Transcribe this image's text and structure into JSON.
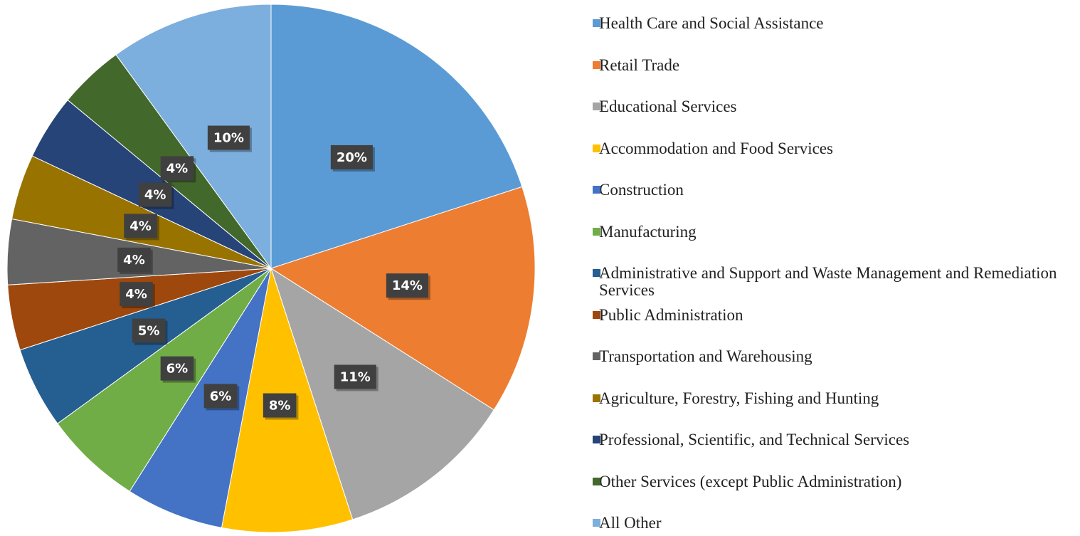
{
  "chart_data": {
    "type": "pie",
    "categories": [
      "Health Care and Social Assistance",
      "Retail Trade",
      "Educational Services",
      "Accommodation and Food Services",
      "Construction",
      "Manufacturing",
      "Administrative and Support and Waste Management and Remediation Services",
      "Public Administration",
      "Transportation and Warehousing",
      "Agriculture, Forestry, Fishing and Hunting",
      "Professional, Scientific, and Technical Services",
      "Other Services (except Public Administration)",
      "All Other"
    ],
    "values": [
      20,
      14,
      11,
      8,
      6,
      6,
      5,
      4,
      4,
      4,
      4,
      4,
      10
    ],
    "value_labels": [
      "20%",
      "14%",
      "11%",
      "8%",
      "6%",
      "6%",
      "5%",
      "4%",
      "4%",
      "4%",
      "4%",
      "4%",
      "10%"
    ],
    "colors": [
      "#5b9bd5",
      "#ed7d31",
      "#a5a5a5",
      "#ffc000",
      "#4472c4",
      "#70ad47",
      "#255e91",
      "#9e480e",
      "#636363",
      "#997300",
      "#264478",
      "#43682b",
      "#7cafdd"
    ],
    "legend": "right"
  }
}
